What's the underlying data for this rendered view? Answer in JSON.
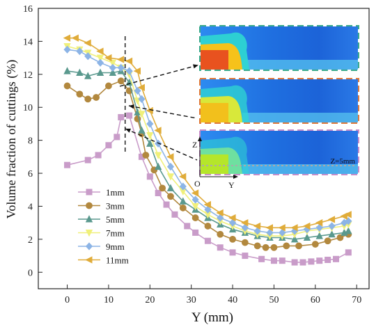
{
  "chart_data": {
    "type": "line",
    "title": "",
    "xlabel": "Y (mm)",
    "ylabel": "Volume fraction of cuttings (%)",
    "xlim": [
      -7,
      73
    ],
    "ylim": [
      -1,
      16
    ],
    "xticks": [
      "0",
      "10",
      "20",
      "30",
      "40",
      "50",
      "60",
      "70"
    ],
    "xtick_values": [
      0,
      10,
      20,
      30,
      40,
      50,
      60,
      70
    ],
    "yticks": [
      "0",
      "2",
      "4",
      "6",
      "8",
      "10",
      "12",
      "14",
      "16"
    ],
    "ytick_values": [
      0,
      2,
      4,
      6,
      8,
      10,
      12,
      14,
      16
    ],
    "legend_position": "bottom-left",
    "series": [
      {
        "name": "1mm",
        "color": "#c99cc9",
        "marker": "square",
        "points": [
          [
            0,
            6.5
          ],
          [
            5,
            6.8
          ],
          [
            7.5,
            7.1
          ],
          [
            10,
            7.7
          ],
          [
            12,
            8.2
          ],
          [
            13,
            9.4
          ],
          [
            15,
            9.5
          ],
          [
            18,
            7.0
          ],
          [
            20,
            5.8
          ],
          [
            22,
            4.8
          ],
          [
            24,
            4.1
          ],
          [
            26,
            3.5
          ],
          [
            29,
            2.8
          ],
          [
            31,
            2.4
          ],
          [
            34,
            1.9
          ],
          [
            37,
            1.5
          ],
          [
            40,
            1.2
          ],
          [
            43,
            1.0
          ],
          [
            47,
            0.8
          ],
          [
            50,
            0.7
          ],
          [
            52,
            0.7
          ],
          [
            55,
            0.6
          ],
          [
            57,
            0.6
          ],
          [
            59,
            0.65
          ],
          [
            61,
            0.7
          ],
          [
            63,
            0.75
          ],
          [
            65,
            0.8
          ],
          [
            68,
            1.2
          ]
        ]
      },
      {
        "name": "3mm",
        "color": "#b2883e",
        "marker": "circle",
        "points": [
          [
            0,
            11.3
          ],
          [
            3,
            10.8
          ],
          [
            5,
            10.5
          ],
          [
            7,
            10.6
          ],
          [
            10,
            11.3
          ],
          [
            13,
            11.6
          ],
          [
            15,
            11.0
          ],
          [
            17,
            9.3
          ],
          [
            18,
            8.4
          ],
          [
            19,
            7.1
          ],
          [
            21,
            6.2
          ],
          [
            23,
            5.1
          ],
          [
            25,
            4.6
          ],
          [
            28,
            3.9
          ],
          [
            31,
            3.3
          ],
          [
            34,
            2.8
          ],
          [
            37,
            2.3
          ],
          [
            40,
            2.0
          ],
          [
            43,
            1.8
          ],
          [
            46,
            1.6
          ],
          [
            48,
            1.5
          ],
          [
            50,
            1.5
          ],
          [
            53,
            1.6
          ],
          [
            56,
            1.6
          ],
          [
            60,
            1.7
          ],
          [
            63,
            1.9
          ],
          [
            66,
            2.1
          ],
          [
            68,
            2.3
          ]
        ]
      },
      {
        "name": "5mm",
        "color": "#5a998e",
        "marker": "triangle-up",
        "points": [
          [
            0,
            12.2
          ],
          [
            3,
            12.1
          ],
          [
            5,
            11.9
          ],
          [
            8,
            12.1
          ],
          [
            11,
            12.1
          ],
          [
            13,
            12.2
          ],
          [
            15,
            11.5
          ],
          [
            17,
            9.7
          ],
          [
            18,
            8.6
          ],
          [
            20,
            7.8
          ],
          [
            22,
            6.4
          ],
          [
            25,
            5.1
          ],
          [
            28,
            4.3
          ],
          [
            31,
            3.8
          ],
          [
            34,
            3.3
          ],
          [
            37,
            2.9
          ],
          [
            40,
            2.6
          ],
          [
            43,
            2.4
          ],
          [
            46,
            2.2
          ],
          [
            49,
            2.1
          ],
          [
            52,
            2.1
          ],
          [
            55,
            2.0
          ],
          [
            58,
            2.1
          ],
          [
            61,
            2.2
          ],
          [
            64,
            2.3
          ],
          [
            67,
            2.4
          ],
          [
            68,
            2.5
          ]
        ]
      },
      {
        "name": "7mm",
        "color": "#f0f07a",
        "marker": "triangle-down",
        "points": [
          [
            0,
            13.7
          ],
          [
            3,
            13.5
          ],
          [
            5,
            13.3
          ],
          [
            8,
            13.0
          ],
          [
            11,
            12.7
          ],
          [
            13,
            12.4
          ],
          [
            15,
            12.0
          ],
          [
            17,
            10.4
          ],
          [
            18,
            9.6
          ],
          [
            20,
            8.3
          ],
          [
            22,
            7.1
          ],
          [
            25,
            5.8
          ],
          [
            28,
            4.9
          ],
          [
            31,
            4.0
          ],
          [
            34,
            3.5
          ],
          [
            37,
            3.1
          ],
          [
            40,
            2.8
          ],
          [
            43,
            2.5
          ],
          [
            46,
            2.3
          ],
          [
            49,
            2.2
          ],
          [
            52,
            2.2
          ],
          [
            55,
            2.3
          ],
          [
            58,
            2.5
          ],
          [
            61,
            2.6
          ],
          [
            64,
            2.7
          ],
          [
            67,
            2.8
          ],
          [
            68,
            2.9
          ]
        ]
      },
      {
        "name": "9mm",
        "color": "#8cb4e6",
        "marker": "diamond",
        "points": [
          [
            0,
            13.5
          ],
          [
            3,
            13.4
          ],
          [
            5,
            13.1
          ],
          [
            8,
            12.7
          ],
          [
            11,
            12.4
          ],
          [
            13,
            12.4
          ],
          [
            15,
            12.2
          ],
          [
            17,
            11.0
          ],
          [
            18,
            10.5
          ],
          [
            20,
            9.0
          ],
          [
            22,
            7.8
          ],
          [
            25,
            6.4
          ],
          [
            28,
            5.2
          ],
          [
            31,
            4.4
          ],
          [
            34,
            3.8
          ],
          [
            37,
            3.3
          ],
          [
            40,
            3.0
          ],
          [
            43,
            2.7
          ],
          [
            46,
            2.5
          ],
          [
            49,
            2.4
          ],
          [
            52,
            2.4
          ],
          [
            55,
            2.5
          ],
          [
            58,
            2.6
          ],
          [
            61,
            2.7
          ],
          [
            64,
            2.8
          ],
          [
            67,
            3.0
          ],
          [
            68,
            3.1
          ]
        ]
      },
      {
        "name": "11mm",
        "color": "#e0ac3a",
        "marker": "triangle-left",
        "points": [
          [
            0,
            14.2
          ],
          [
            2,
            14.2
          ],
          [
            5,
            13.9
          ],
          [
            8,
            13.4
          ],
          [
            10,
            13.0
          ],
          [
            13,
            12.9
          ],
          [
            15,
            12.8
          ],
          [
            17,
            12.2
          ],
          [
            18,
            11.2
          ],
          [
            20,
            9.8
          ],
          [
            22,
            8.6
          ],
          [
            25,
            7.0
          ],
          [
            28,
            5.8
          ],
          [
            31,
            4.8
          ],
          [
            34,
            4.1
          ],
          [
            37,
            3.6
          ],
          [
            40,
            3.3
          ],
          [
            43,
            3.0
          ],
          [
            46,
            2.8
          ],
          [
            49,
            2.7
          ],
          [
            52,
            2.7
          ],
          [
            55,
            2.7
          ],
          [
            58,
            2.8
          ],
          [
            61,
            3.0
          ],
          [
            64,
            3.2
          ],
          [
            67,
            3.4
          ],
          [
            68,
            3.5
          ]
        ]
      }
    ],
    "reference_line_x": 14,
    "inset": {
      "axis_z": "Z",
      "axis_y": "Y",
      "origin": "O",
      "slice_label": "Z=5mm",
      "frame_colors": [
        "#3aaa8c",
        "#e07a3a",
        "#c88cc8"
      ],
      "panel_levels": [
        0.9,
        0.75,
        0.55
      ]
    }
  }
}
